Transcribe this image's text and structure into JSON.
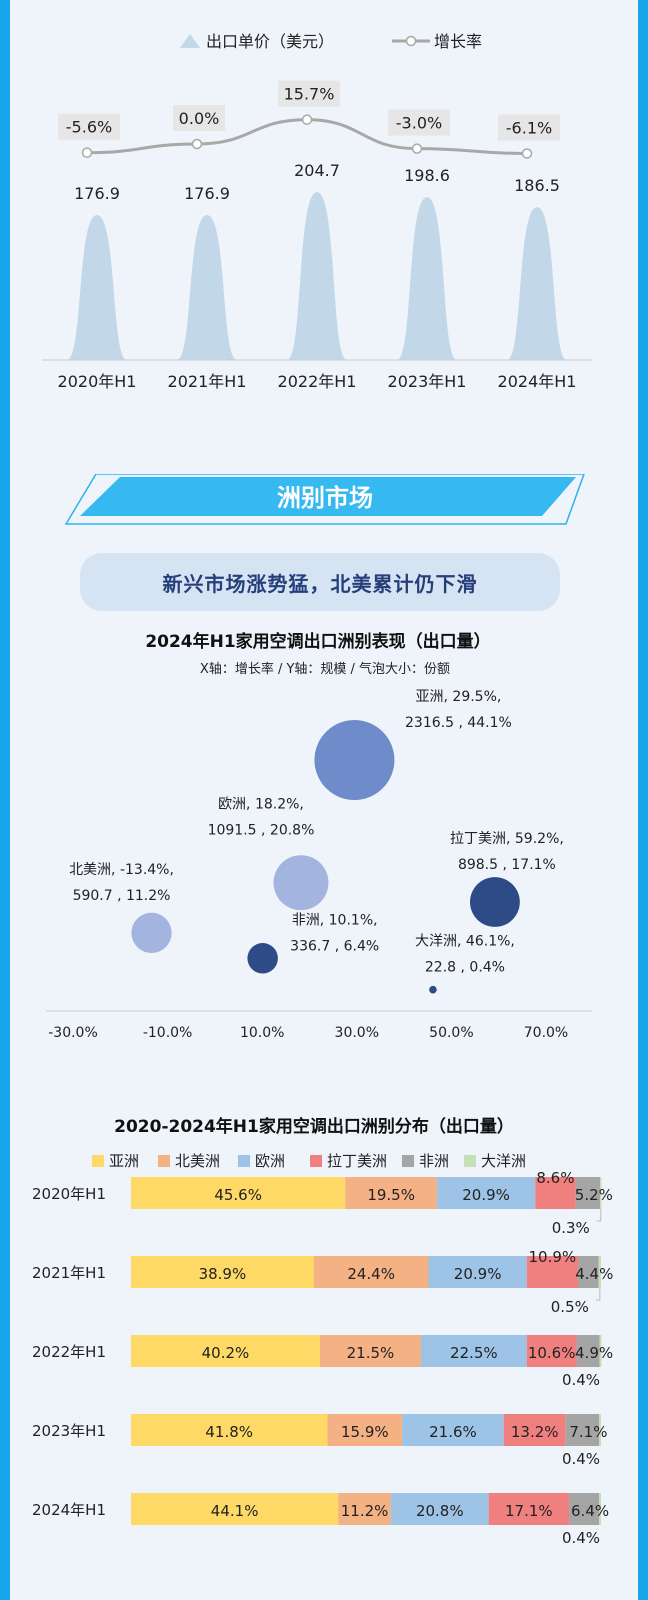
{
  "price_chart": {
    "legend": {
      "price": "出口单价（美元）",
      "growth": "增长率"
    },
    "chart_data": {
      "type": "area",
      "categories": [
        "2020年H1",
        "2021年H1",
        "2022年H1",
        "2023年H1",
        "2024年H1"
      ],
      "series": [
        {
          "name": "出口单价（美元）",
          "values": [
            176.9,
            176.9,
            204.7,
            198.6,
            186.5
          ],
          "labels": [
            "176.9",
            "176.9",
            "204.7",
            "198.6",
            "186.5"
          ]
        },
        {
          "name": "增长率",
          "values": [
            -5.6,
            0.0,
            15.7,
            -3.0,
            -6.1
          ],
          "labels": [
            "-5.6%",
            "0.0%",
            "15.7%",
            "-3.0%",
            "-6.1%"
          ]
        }
      ],
      "colors": {
        "price": "#c2d8e8",
        "growth": "#a8a8a8"
      }
    }
  },
  "section_banner": {
    "title": "洲别市场"
  },
  "headline": "新兴市场涨势猛，北美累计仍下滑",
  "bubble_chart": {
    "title": "2024年H1家用空调出口洲别表现（出口量）",
    "subtitle": "X轴：增长率 / Y轴：规模 / 气泡大小：份额",
    "chart_data": {
      "type": "scatter",
      "x_ticks": [
        "-30.0%",
        "-10.0%",
        "10.0%",
        "30.0%",
        "50.0%",
        "70.0%"
      ],
      "xlim": [
        -30,
        70
      ],
      "points": [
        {
          "name": "亚洲",
          "growth": 29.5,
          "scale": 2316.5,
          "share": 44.1,
          "label1": "亚洲, 29.5%,",
          "label2": "2316.5 , 44.1%"
        },
        {
          "name": "欧洲",
          "growth": 18.2,
          "scale": 1091.5,
          "share": 20.8,
          "label1": "欧洲, 18.2%,",
          "label2": "1091.5 , 20.8%"
        },
        {
          "name": "北美洲",
          "growth": -13.4,
          "scale": 590.7,
          "share": 11.2,
          "label1": "北美洲, -13.4%,",
          "label2": "590.7 , 11.2%"
        },
        {
          "name": "非洲",
          "growth": 10.1,
          "scale": 336.7,
          "share": 6.4,
          "label1": "非洲, 10.1%,",
          "label2": "336.7 , 6.4%"
        },
        {
          "name": "拉丁美洲",
          "growth": 59.2,
          "scale": 898.5,
          "share": 17.1,
          "label1": "拉丁美洲, 59.2%,",
          "label2": "898.5 , 17.1%"
        },
        {
          "name": "大洋洲",
          "growth": 46.1,
          "scale": 22.8,
          "share": 0.4,
          "label1": "大洋洲, 46.1%,",
          "label2": "22.8 , 0.4%"
        }
      ],
      "colors": {
        "light": "#a3b5de",
        "mid": "#6e8cc9",
        "dark": "#2d4b86"
      }
    }
  },
  "stacked_chart": {
    "title": "2020-2024年H1家用空调出口洲别分布（出口量）",
    "chart_data": {
      "type": "bar",
      "orientation": "horizontal-stacked",
      "categories": [
        "2020年H1",
        "2021年H1",
        "2022年H1",
        "2023年H1",
        "2024年H1"
      ],
      "series": [
        {
          "name": "亚洲",
          "color": "#ffd966",
          "values": [
            45.6,
            38.9,
            40.2,
            41.8,
            44.1
          ]
        },
        {
          "name": "北美洲",
          "color": "#f4b183",
          "values": [
            19.5,
            24.4,
            21.5,
            15.9,
            11.2
          ]
        },
        {
          "name": "欧洲",
          "color": "#9dc3e6",
          "values": [
            20.9,
            20.9,
            22.5,
            21.6,
            20.8
          ]
        },
        {
          "name": "拉丁美洲",
          "color": "#f08080",
          "values": [
            8.6,
            10.9,
            10.6,
            13.2,
            17.1
          ]
        },
        {
          "name": "非洲",
          "color": "#a5a5a5",
          "values": [
            5.2,
            4.4,
            4.9,
            7.1,
            6.4
          ]
        },
        {
          "name": "大洋洲",
          "color": "#c5e0b4",
          "values": [
            0.3,
            0.5,
            0.4,
            0.4,
            0.4
          ]
        }
      ],
      "value_suffix": "%"
    }
  }
}
